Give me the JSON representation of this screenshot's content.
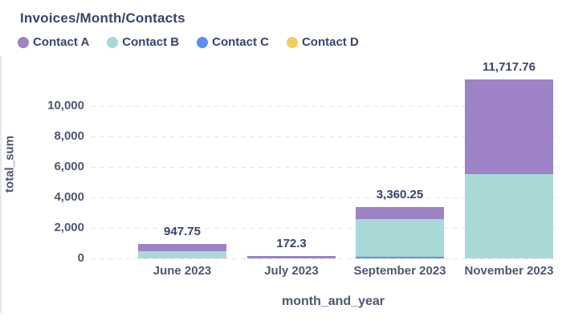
{
  "title": "Invoices/Month/Contacts",
  "chart_data": {
    "type": "bar",
    "stacked": true,
    "title": "Invoices/Month/Contacts",
    "xlabel": "month_and_year",
    "ylabel": "total_sum",
    "categories": [
      "June 2023",
      "July 2023",
      "September 2023",
      "November 2023"
    ],
    "totals": [
      947.75,
      172.3,
      3360.25,
      11717.76
    ],
    "total_labels": [
      "947.75",
      "172.3",
      "3,360.25",
      "11,717.76"
    ],
    "series": [
      {
        "name": "Contact A",
        "color": "#9d83c5",
        "values": [
          500,
          172.3,
          790,
          6200
        ]
      },
      {
        "name": "Contact B",
        "color": "#a9d9d7",
        "values": [
          447.75,
          0,
          2460,
          5517.76
        ]
      },
      {
        "name": "Contact C",
        "color": "#5c8ff0",
        "values": [
          0,
          0,
          110.25,
          0
        ]
      },
      {
        "name": "Contact D",
        "color": "#f2cd5c",
        "values": [
          0,
          0,
          0,
          0
        ]
      }
    ],
    "yticks": [
      {
        "value": 0,
        "label": "0"
      },
      {
        "value": 2000,
        "label": "2,000"
      },
      {
        "value": 4000,
        "label": "4,000"
      },
      {
        "value": 6000,
        "label": "6,000"
      },
      {
        "value": 8000,
        "label": "8,000"
      },
      {
        "value": 10000,
        "label": "10,000"
      }
    ],
    "ylim": [
      0,
      12000
    ],
    "grid": "dashed-horizontal",
    "legend_position": "top-left"
  },
  "colors": {
    "title_text": "#39436b",
    "axis_text": "#4e5671",
    "gridline": "#e2e5ea",
    "background": "#ffffff"
  }
}
